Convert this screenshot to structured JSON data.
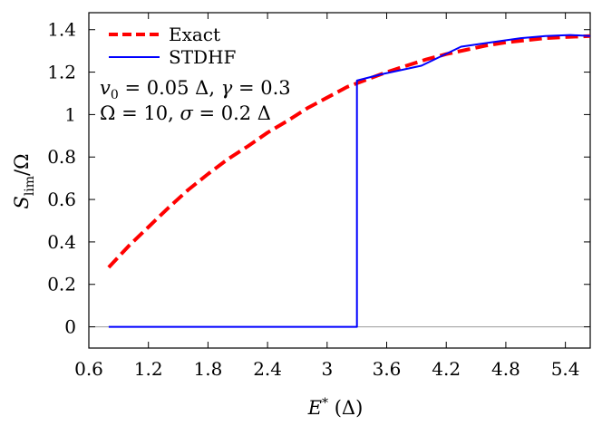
{
  "chart_data": {
    "type": "line",
    "xlabel": "E* (Δ)",
    "ylabel": "S_lim/Ω",
    "xlim": [
      0.6,
      5.65
    ],
    "ylim": [
      -0.1,
      1.48
    ],
    "xticks": [
      "0.6",
      "1.2",
      "1.8",
      "2.4",
      "3",
      "3.6",
      "4.2",
      "4.8",
      "5.4"
    ],
    "yticks": [
      "0",
      "0.2",
      "0.4",
      "0.6",
      "0.8",
      "1",
      "1.2",
      "1.4"
    ],
    "legend_position": "top-left",
    "annotations": [
      "v0 = 0.05 Δ, γ = 0.3",
      "Ω = 10, σ = 0.2 Δ"
    ],
    "series": [
      {
        "name": "Exact",
        "style": "dashed",
        "color": "#ff0000",
        "x": [
          0.8,
          1.0,
          1.2,
          1.4,
          1.6,
          1.8,
          2.0,
          2.2,
          2.4,
          2.6,
          2.8,
          3.0,
          3.2,
          3.4,
          3.6,
          3.8,
          4.0,
          4.2,
          4.4,
          4.6,
          4.8,
          5.0,
          5.2,
          5.4,
          5.65
        ],
        "y": [
          0.28,
          0.38,
          0.47,
          0.56,
          0.645,
          0.72,
          0.79,
          0.85,
          0.915,
          0.97,
          1.03,
          1.08,
          1.13,
          1.165,
          1.2,
          1.23,
          1.26,
          1.285,
          1.305,
          1.325,
          1.34,
          1.35,
          1.36,
          1.365,
          1.37
        ]
      },
      {
        "name": "STDHF",
        "style": "solid",
        "color": "#0000ff",
        "x": [
          0.8,
          3.3,
          3.3,
          3.55,
          3.95,
          4.35,
          4.65,
          4.95,
          5.2,
          5.45,
          5.65
        ],
        "y": [
          0.0,
          0.0,
          1.16,
          1.19,
          1.23,
          1.32,
          1.34,
          1.36,
          1.37,
          1.375,
          1.37
        ]
      }
    ]
  }
}
